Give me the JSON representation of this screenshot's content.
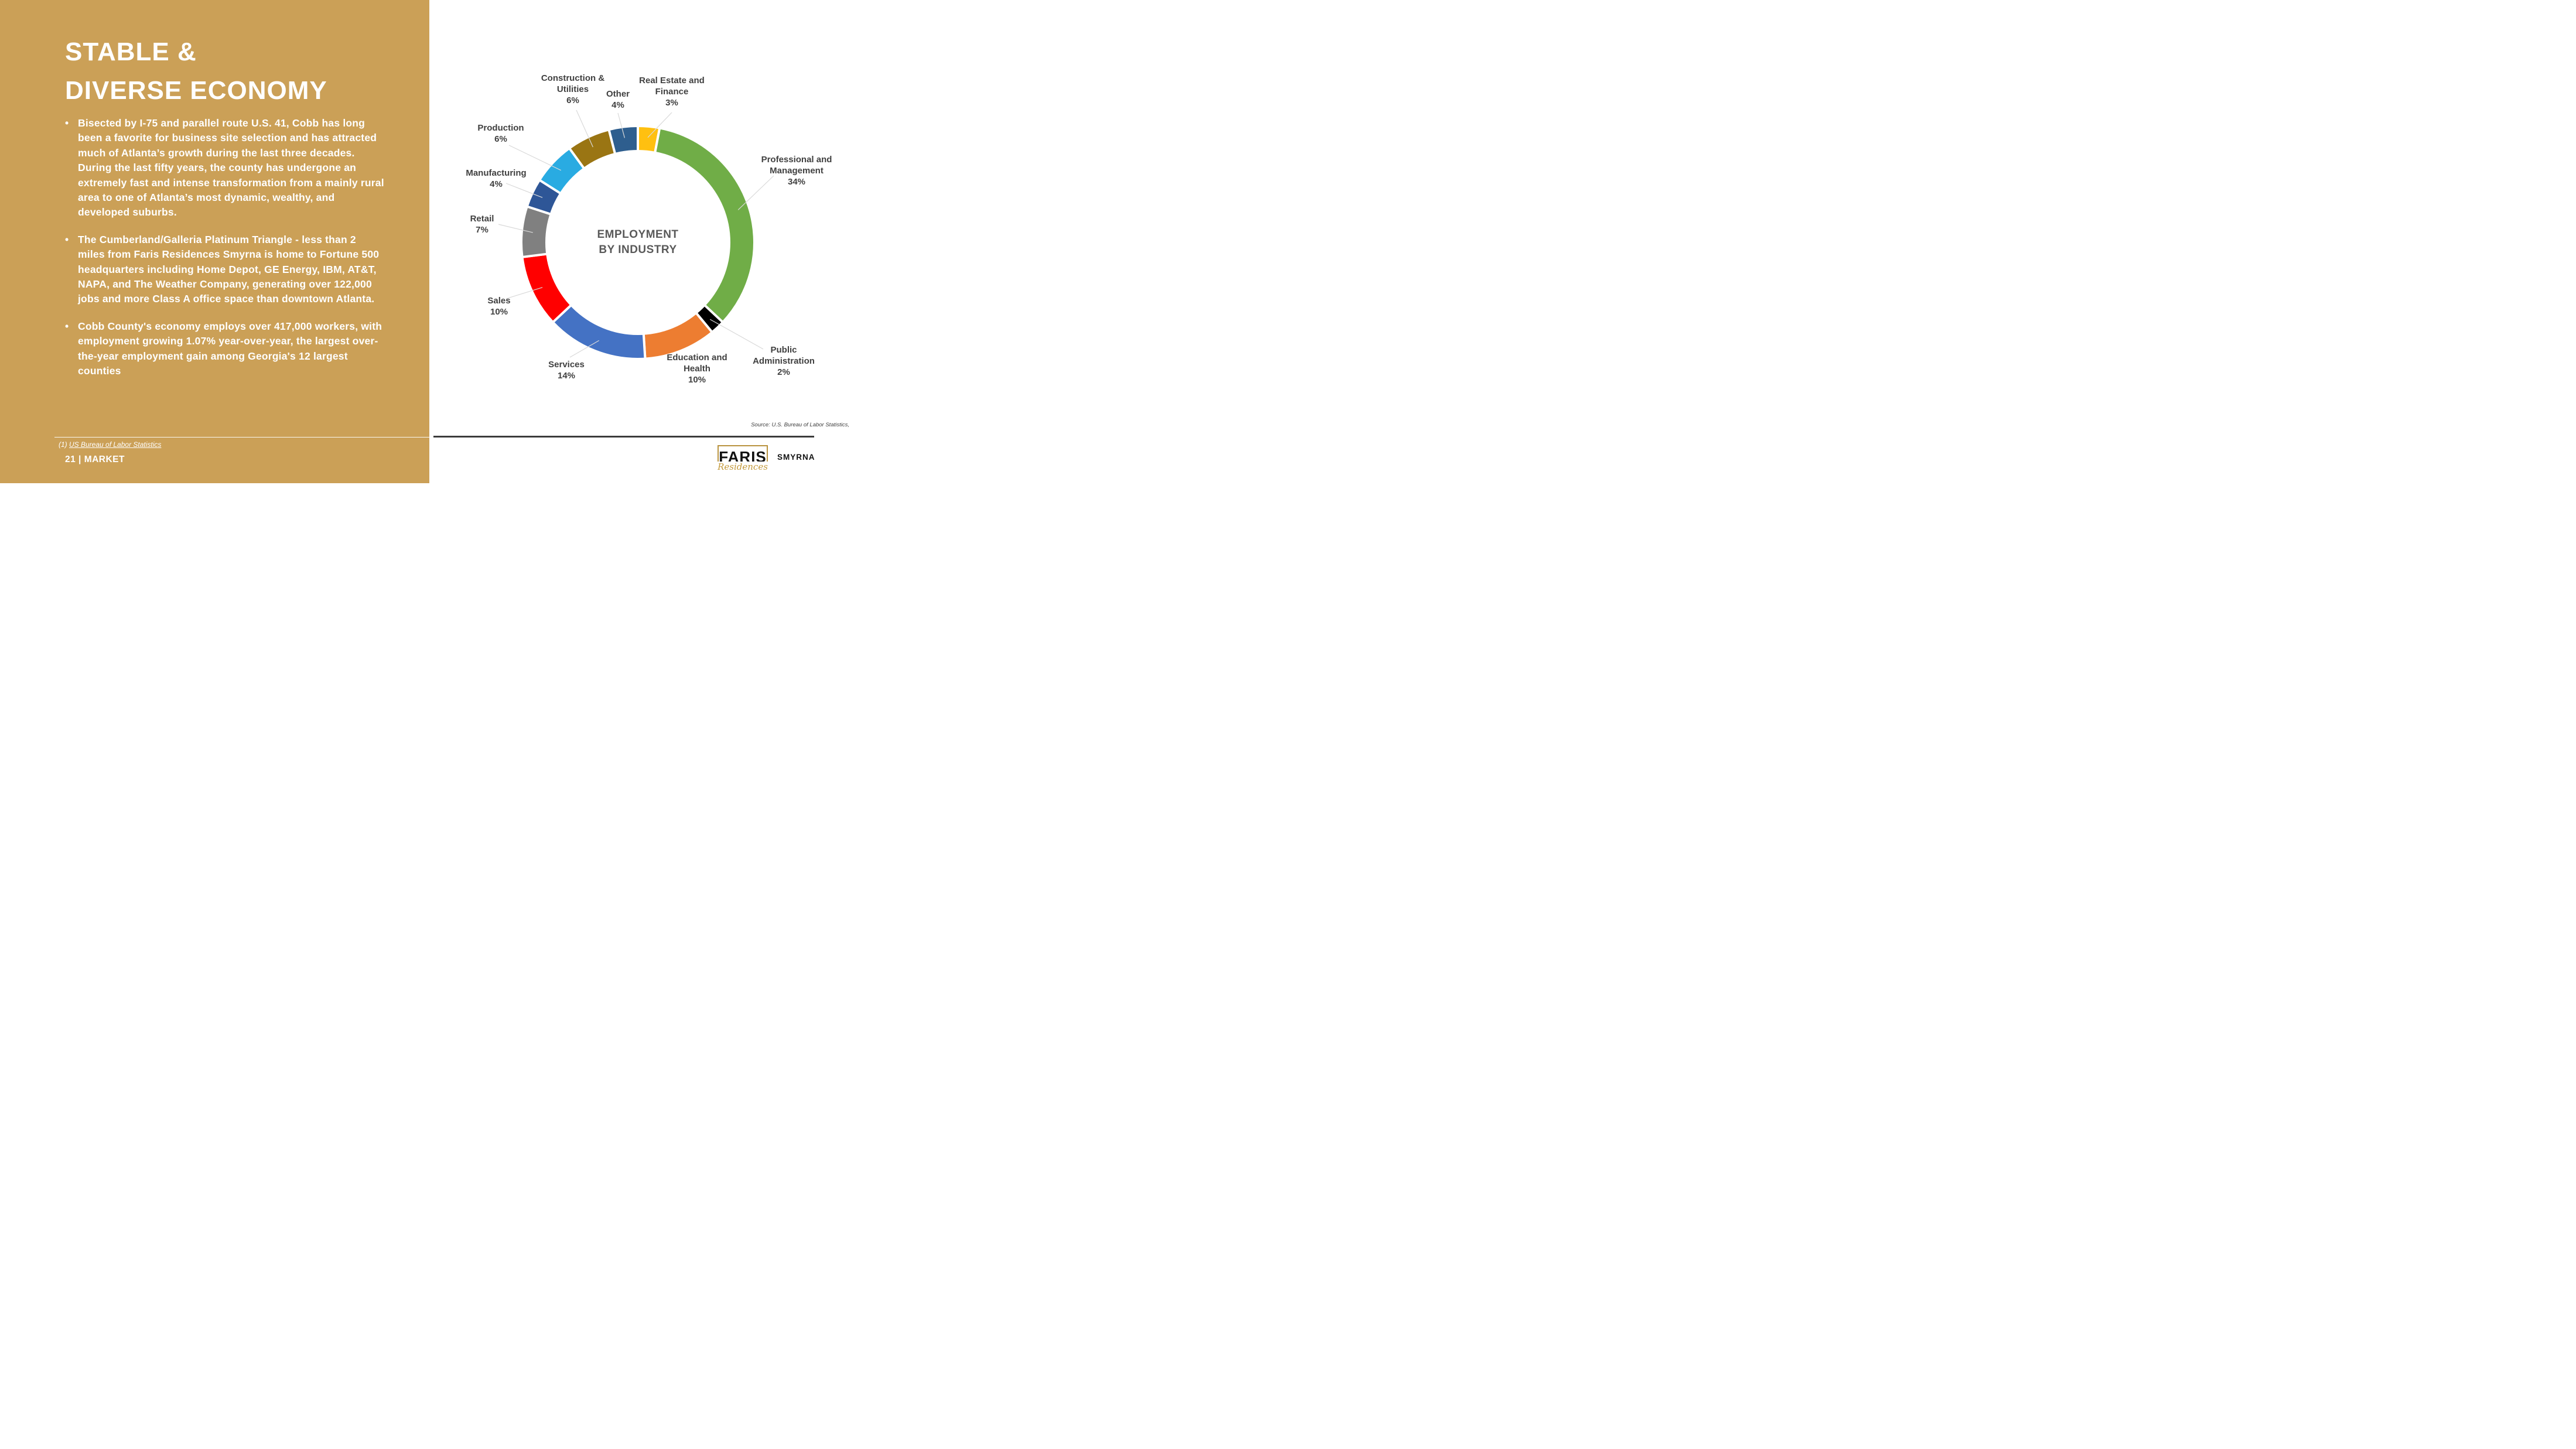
{
  "slide": {
    "title_lines": [
      "STABLE &",
      "DIVERSE ECONOMY"
    ],
    "bullets": [
      "Bisected by I-75 and parallel route U.S. 41, Cobb has long been a favorite for business site selection and has attracted much of Atlanta’s growth during the last three decades. During the last fifty years, the county has undergone an extremely fast and intense transformation from a mainly rural area to one of Atlanta’s most dynamic, wealthy, and developed suburbs.",
      "The Cumberland/Galleria Platinum Triangle - less than 2 miles from Faris Residences Smyrna is home to Fortune 500 headquarters including Home Depot, GE Energy, IBM, AT&T, NAPA, and The Weather Company, generating over 122,000 jobs and more Class A office space than downtown Atlanta.",
      "Cobb County's economy employs over 417,000 workers, with employment growing 1.07% year-over-year, the largest over-the-year employment gain among Georgia's 12 largest counties"
    ],
    "bullet_char": "•",
    "footnote_prefix": "(1) ",
    "footnote_link": "US Bureau of Labor Statistics",
    "footer": "21 | MARKET"
  },
  "chart": {
    "center_label_line1": "EMPLOYMENT",
    "center_label_line2": "BY INDUSTRY",
    "source": "Source: U.S. Bureau of Labor Statistics,"
  },
  "chart_data": {
    "type": "pie",
    "subtype": "donut",
    "title": "EMPLOYMENT BY INDUSTRY",
    "start_angle_deg": 0,
    "direction": "clockwise",
    "legend_position": "outside-callout-labels",
    "series": [
      {
        "label": "Real Estate and Finance",
        "value": 3,
        "color": "#FFC010",
        "label_lines": [
          "Real Estate and",
          "Finance",
          "3%"
        ]
      },
      {
        "label": "Professional and Management",
        "value": 34,
        "color": "#70AD47",
        "label_lines": [
          "Professional and",
          "Management",
          "34%"
        ]
      },
      {
        "label": "Public Administration",
        "value": 2,
        "color": "#000000",
        "label_lines": [
          "Public",
          "Administration",
          "2%"
        ]
      },
      {
        "label": "Education and Health",
        "value": 10,
        "color": "#ED7D31",
        "label_lines": [
          "Education and",
          "Health",
          "10%"
        ]
      },
      {
        "label": "Services",
        "value": 14,
        "color": "#4472C4",
        "label_lines": [
          "Services",
          "14%"
        ]
      },
      {
        "label": "Sales",
        "value": 10,
        "color": "#FF0000",
        "label_lines": [
          "Sales",
          "10%"
        ]
      },
      {
        "label": "Retail",
        "value": 7,
        "color": "#808080",
        "label_lines": [
          "Retail",
          "7%"
        ]
      },
      {
        "label": "Manufacturing",
        "value": 4,
        "color": "#2E5697",
        "label_lines": [
          "Manufacturing",
          "4%"
        ]
      },
      {
        "label": "Production",
        "value": 6,
        "color": "#29ABE2",
        "label_lines": [
          "Production",
          "6%"
        ]
      },
      {
        "label": "Construction & Utilities",
        "value": 6,
        "color": "#9A7513",
        "label_lines": [
          "Construction &",
          "Utilities",
          "6%"
        ]
      },
      {
        "label": "Other",
        "value": 4,
        "color": "#2E5E8E",
        "label_lines": [
          "Other",
          "4%"
        ]
      }
    ]
  },
  "logo": {
    "name": "FARIS",
    "script": "Residences",
    "city": "SMYRNA"
  },
  "colors": {
    "gold_background": "#CBA057",
    "label_text": "#404040",
    "center_text": "#595959",
    "logo_gold": "#B9933F"
  }
}
